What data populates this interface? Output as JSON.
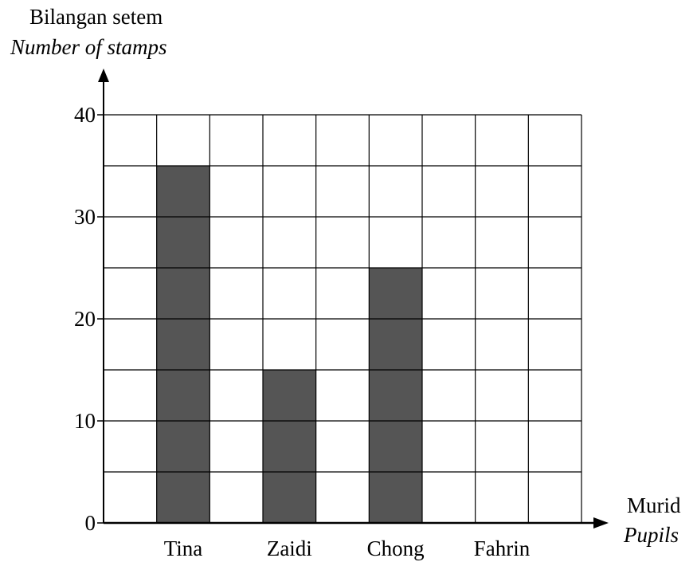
{
  "chart_data": {
    "type": "bar",
    "categories": [
      "Tina",
      "Zaidi",
      "Chong",
      "Fahrin"
    ],
    "values": [
      35,
      15,
      25,
      null
    ],
    "ylabel": "Bilangan setem",
    "ylabel_en": "Number of stamps",
    "xlabel": "Murid",
    "xlabel_en": "Pupils",
    "ylim": [
      0,
      40
    ],
    "yticks": [
      0,
      10,
      20,
      30,
      40
    ],
    "grid": true,
    "bar_color": "#555555"
  }
}
